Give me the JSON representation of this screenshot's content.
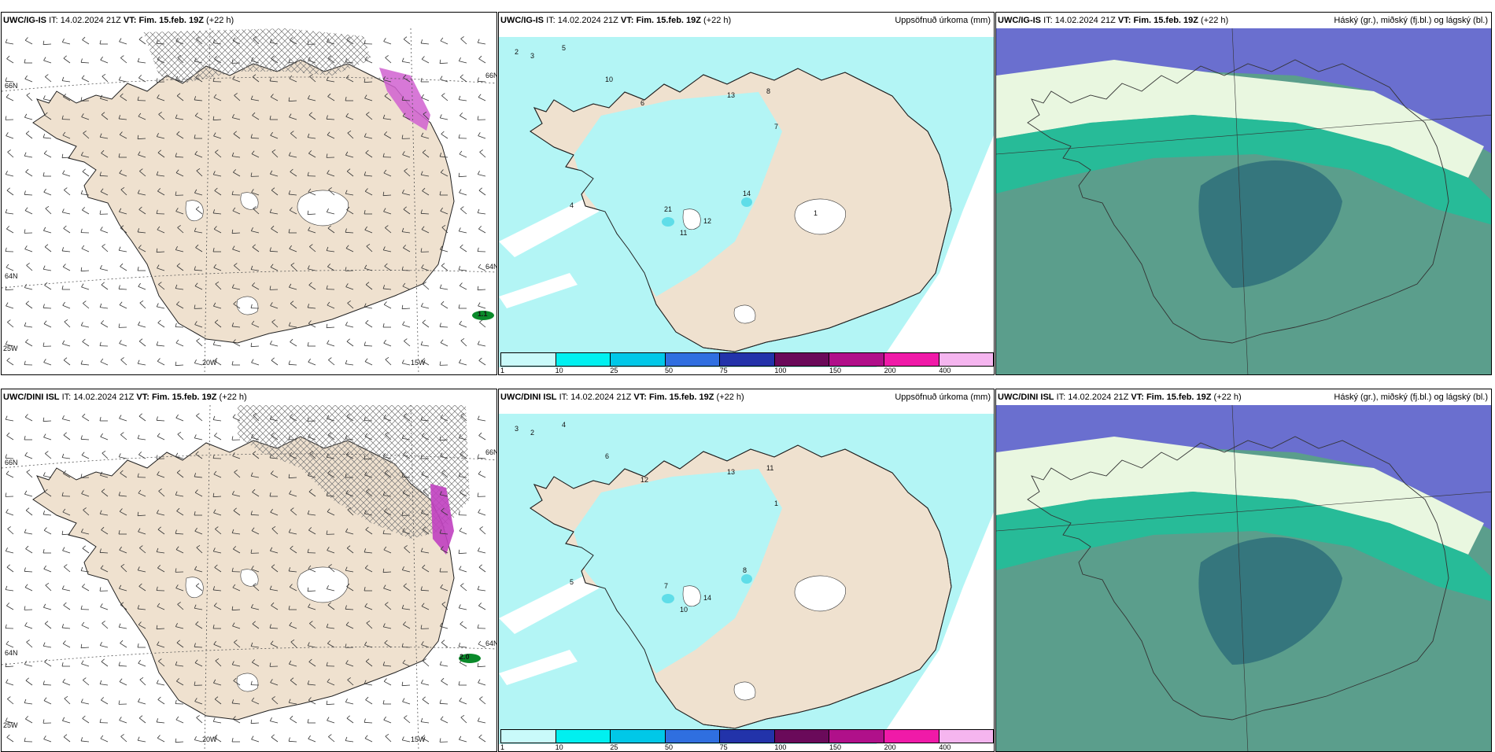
{
  "panels": [
    {
      "model": "UWC/IG-IS",
      "it_label": "IT:",
      "it_value": "14.02.2024 21Z",
      "vt_label": "VT:",
      "vt_value": "Fim. 15.feb. 19Z",
      "lead": "(+22 h)",
      "right_title": "",
      "lat_labels": [
        "66N",
        "64N",
        "66N",
        "64N"
      ],
      "lon_labels": [
        "25W",
        "20W",
        "15W"
      ],
      "annotation": "1.1"
    },
    {
      "model": "UWC/IG-IS",
      "it_label": "IT:",
      "it_value": "14.02.2024 21Z",
      "vt_label": "VT:",
      "vt_value": "Fim. 15.feb. 19Z",
      "lead": "(+22 h)",
      "right_title": "Uppsöfnuð úrkoma (mm)",
      "legend_ticks": [
        "1",
        "10",
        "25",
        "50",
        "75",
        "100",
        "150",
        "200",
        "400"
      ]
    },
    {
      "model": "UWC/IG-IS",
      "it_label": "IT:",
      "it_value": "14.02.2024 21Z",
      "vt_label": "VT:",
      "vt_value": "Fim. 15.feb. 19Z",
      "lead": "(+22 h)",
      "right_title": "Háský (gr.), miðský (fj.bl.) og lágský (bl.)"
    },
    {
      "model": "UWC/DINI ISL",
      "it_label": "IT:",
      "it_value": "14.02.2024 21Z",
      "vt_label": "VT:",
      "vt_value": "Fim. 15.feb. 19Z",
      "lead": "(+22 h)",
      "right_title": "",
      "lat_labels": [
        "66N",
        "64N",
        "66N",
        "64N"
      ],
      "lon_labels": [
        "25W",
        "20W",
        "15W"
      ],
      "annotation": "2.0"
    },
    {
      "model": "UWC/DINI ISL",
      "it_label": "IT:",
      "it_value": "14.02.2024 21Z",
      "vt_label": "VT:",
      "vt_value": "Fim. 15.feb. 19Z",
      "lead": "(+22 h)",
      "right_title": "Uppsöfnuð úrkoma (mm)",
      "legend_ticks": [
        "1",
        "10",
        "25",
        "50",
        "75",
        "100",
        "150",
        "200",
        "400"
      ]
    },
    {
      "model": "UWC/DINI ISL",
      "it_label": "IT:",
      "it_value": "14.02.2024 21Z",
      "vt_label": "VT:",
      "vt_value": "Fim. 15.feb. 19Z",
      "lead": "(+22 h)",
      "right_title": "Háský (gr.), miðský (fj.bl.) og lágský (bl.)"
    }
  ],
  "colors": {
    "land": "#efe1cf",
    "sea": "#ffffff",
    "precip_light": "#b3f5f5",
    "precip_med": "#5fdde8",
    "cloud_high": "#6a6fcf",
    "cloud_mid": "#1fbf9a",
    "cloud_low": "#5b9e8c",
    "legend": [
      "#c9fafa",
      "#00f0f0",
      "#00c8e8",
      "#2f6fe0",
      "#2233aa",
      "#6a0a5a",
      "#b0108a",
      "#f01aa8",
      "#f5b5ef"
    ]
  },
  "precip_values_top": [
    "2",
    "3",
    "5",
    "10",
    "6",
    "13",
    "11",
    "12",
    "8",
    "21",
    "14",
    "4",
    "7",
    "1"
  ],
  "precip_values_bottom": [
    "3",
    "2",
    "4",
    "6",
    "12",
    "13",
    "10",
    "14",
    "11",
    "7",
    "8",
    "5",
    "1"
  ]
}
